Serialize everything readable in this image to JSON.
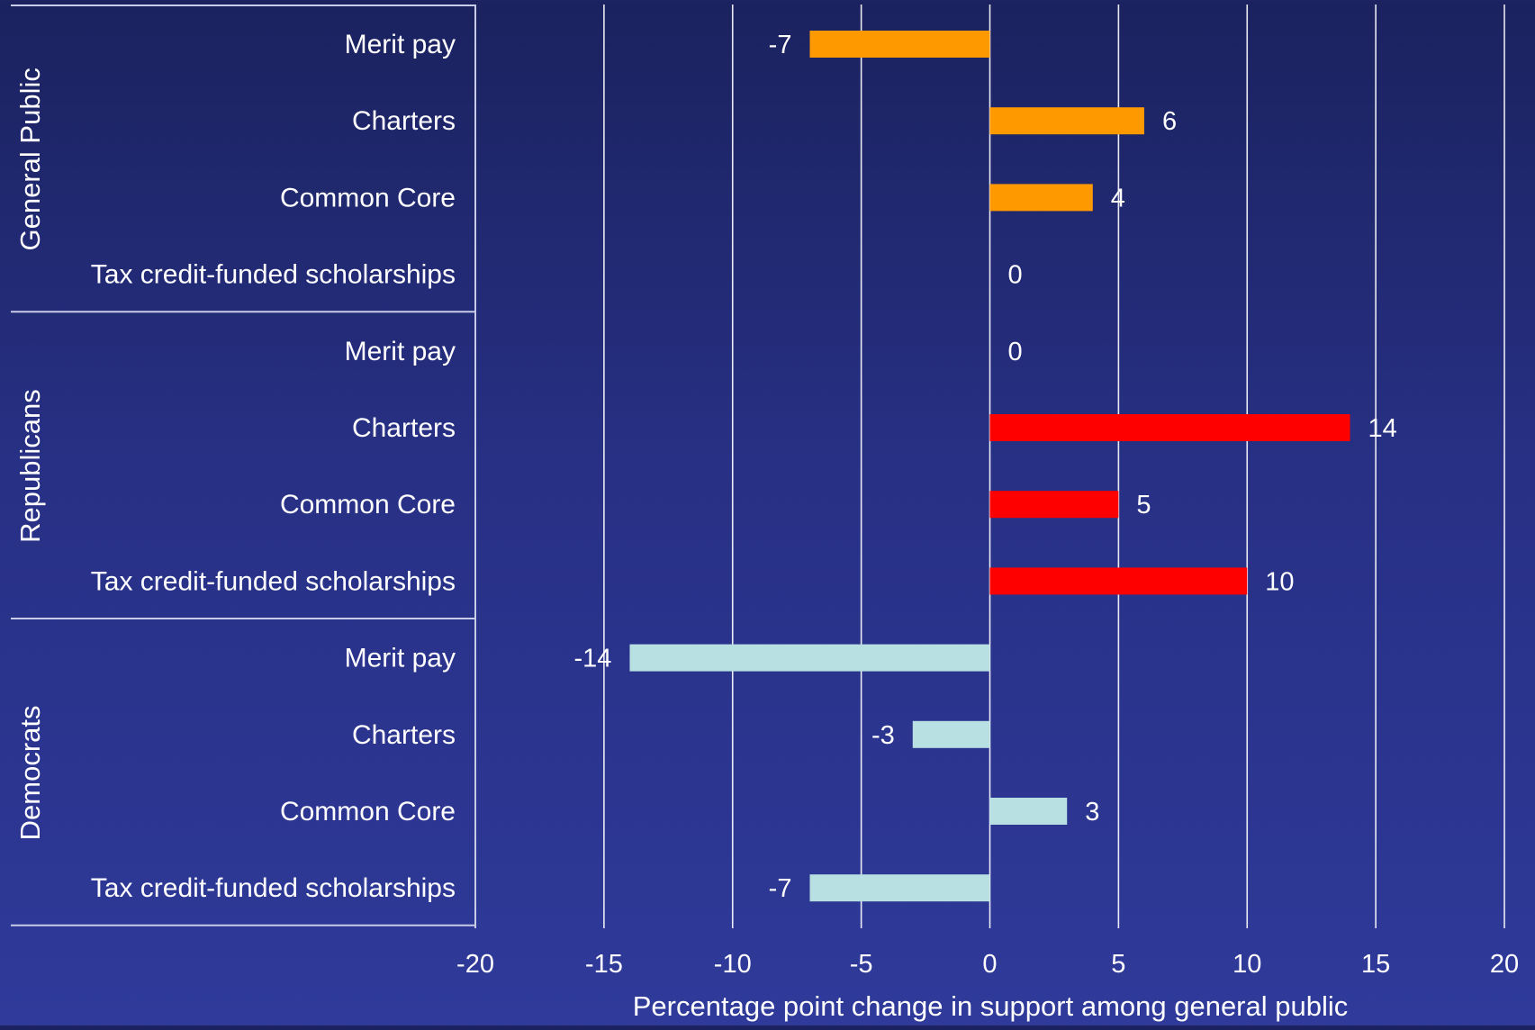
{
  "chart_data": {
    "type": "bar",
    "orientation": "horizontal",
    "title": "",
    "xlabel": "Percentage point change in support among general public",
    "ylabel": "",
    "xlim": [
      -20,
      20
    ],
    "x_ticks": [
      -20,
      -15,
      -10,
      -5,
      0,
      5,
      10,
      15,
      20
    ],
    "grid": true,
    "legend": "none",
    "groups": [
      {
        "name": "General Public",
        "color": "#ff9900",
        "categories": [
          "Merit pay",
          "Charters",
          "Common Core",
          "Tax credit-funded scholarships"
        ],
        "values": [
          -7,
          6,
          4,
          0
        ]
      },
      {
        "name": "Republicans",
        "color": "#ff0000",
        "categories": [
          "Merit pay",
          "Charters",
          "Common Core",
          "Tax credit-funded scholarships"
        ],
        "values": [
          0,
          14,
          5,
          10
        ]
      },
      {
        "name": "Democrats",
        "color": "#b8e0e3",
        "categories": [
          "Merit pay",
          "Charters",
          "Common Core",
          "Tax credit-funded scholarships"
        ],
        "values": [
          -14,
          -3,
          3,
          -7
        ]
      }
    ]
  },
  "colors": {
    "gridline": "#ffffff",
    "text": "#ffffff"
  }
}
